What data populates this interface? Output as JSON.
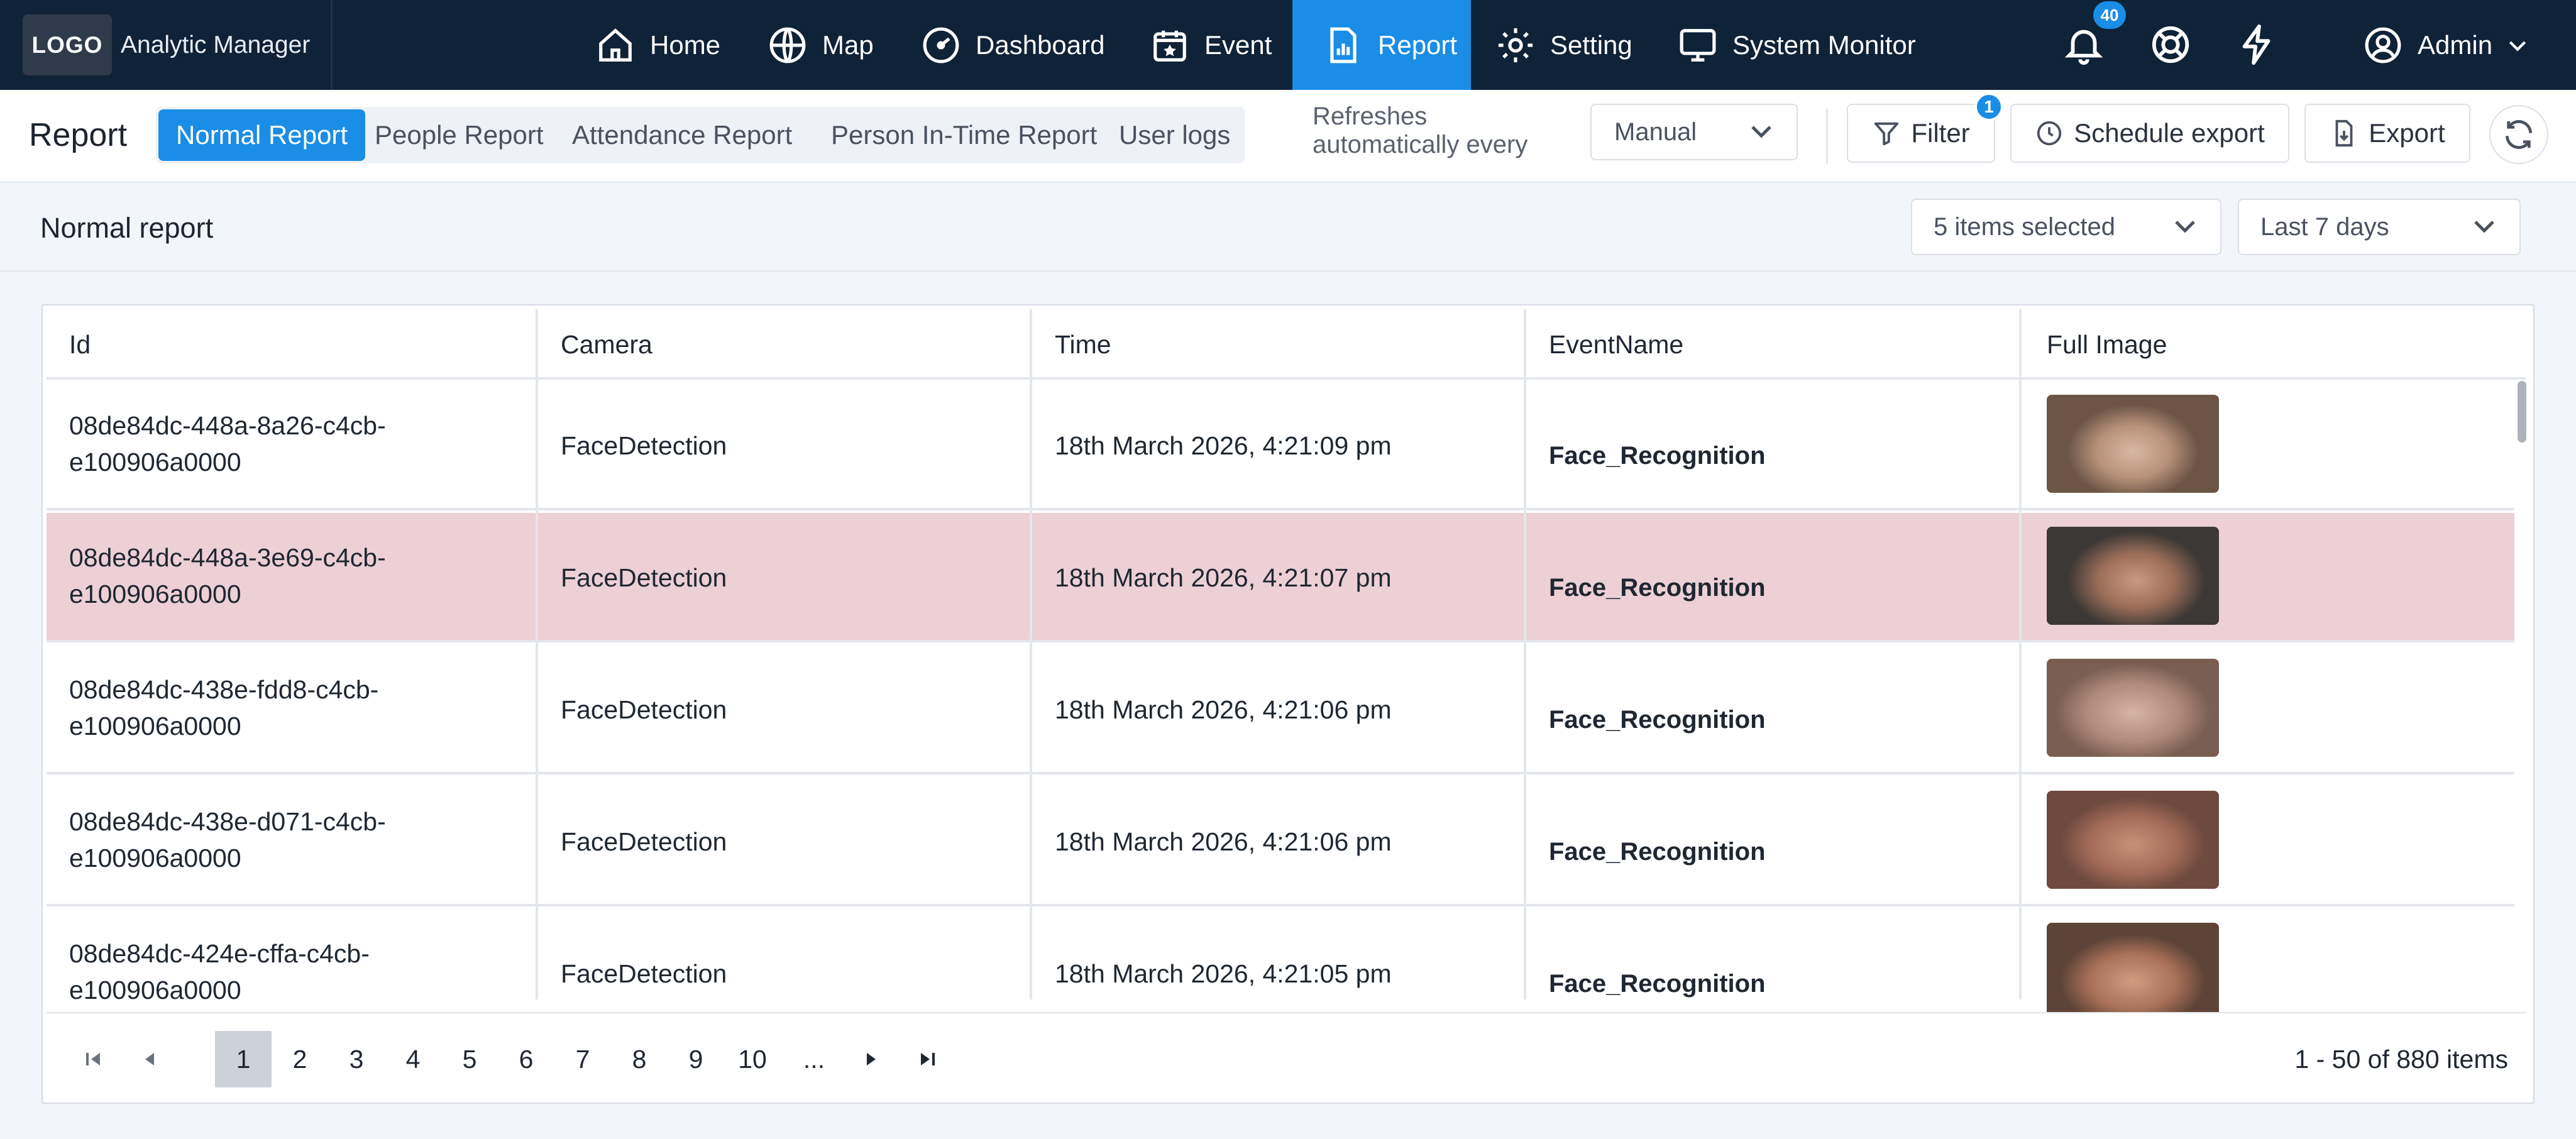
{
  "app": {
    "logo": "LOGO",
    "name": "Analytic Manager"
  },
  "nav": {
    "items": [
      {
        "label": "Home",
        "icon": "home-icon"
      },
      {
        "label": "Map",
        "icon": "globe-icon"
      },
      {
        "label": "Dashboard",
        "icon": "speedometer-icon"
      },
      {
        "label": "Event",
        "icon": "calendar-star-icon"
      },
      {
        "label": "Report",
        "icon": "report-icon",
        "active": true
      },
      {
        "label": "Setting",
        "icon": "gear-icon"
      },
      {
        "label": "System Monitor",
        "icon": "monitor-icon"
      }
    ],
    "notification_count": "40",
    "user": "Admin"
  },
  "report_bar": {
    "title": "Report",
    "tabs": [
      "Normal Report",
      "People Report",
      "Attendance Report",
      "Person In-Time Report",
      "User logs"
    ],
    "active_tab": "Normal Report",
    "refresh_line1": "Refreshes",
    "refresh_line2": "automatically every",
    "refresh_value": "Manual",
    "filter_label": "Filter",
    "filter_count": "1",
    "schedule_label": "Schedule export",
    "export_label": "Export"
  },
  "section": {
    "title": "Normal report",
    "items_selected": "5 items selected",
    "date_range": "Last 7 days"
  },
  "table": {
    "columns": [
      "Id",
      "Camera",
      "Time",
      "EventName",
      "Full Image"
    ],
    "rows": [
      {
        "id_1": "08de84dc-448a-8a26-c4cb-",
        "id_2": "e100906a0000",
        "camera": "FaceDetection",
        "time": "18th March 2026, 4:21:09 pm",
        "event": "Face_Recognition",
        "highlight": false
      },
      {
        "id_1": "08de84dc-448a-3e69-c4cb-",
        "id_2": "e100906a0000",
        "camera": "FaceDetection",
        "time": "18th March 2026, 4:21:07 pm",
        "event": "Face_Recognition",
        "highlight": true
      },
      {
        "id_1": "08de84dc-438e-fdd8-c4cb-",
        "id_2": "e100906a0000",
        "camera": "FaceDetection",
        "time": "18th March 2026, 4:21:06 pm",
        "event": "Face_Recognition",
        "highlight": false
      },
      {
        "id_1": "08de84dc-438e-d071-c4cb-",
        "id_2": "e100906a0000",
        "camera": "FaceDetection",
        "time": "18th March 2026, 4:21:06 pm",
        "event": "Face_Recognition",
        "highlight": false
      },
      {
        "id_1": "08de84dc-424e-cffa-c4cb-",
        "id_2": "e100906a0000",
        "camera": "FaceDetection",
        "time": "18th March 2026, 4:21:05 pm",
        "event": "Face_Recognition",
        "highlight": false
      }
    ]
  },
  "pager": {
    "pages": [
      "1",
      "2",
      "3",
      "4",
      "5",
      "6",
      "7",
      "8",
      "9",
      "10",
      "..."
    ],
    "current": "1",
    "summary": "1 - 50 of 880 items"
  },
  "colors": {
    "nav_bg": "#0e2238",
    "accent": "#1a8de6",
    "row_highlight": "#ecd0d5"
  }
}
